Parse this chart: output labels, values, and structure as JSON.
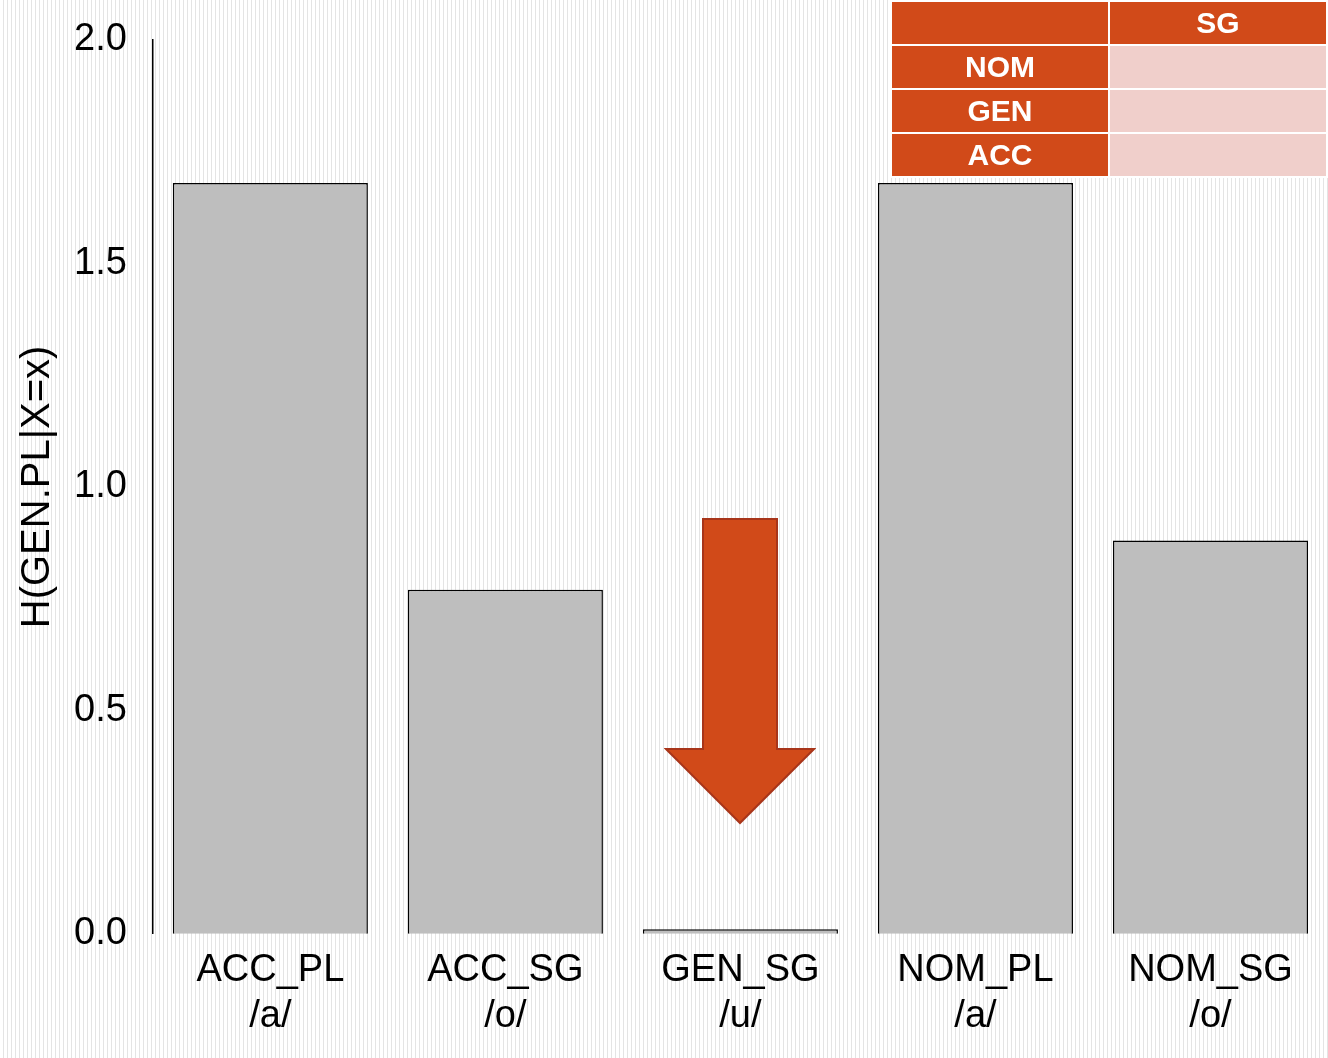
{
  "chart_data": {
    "type": "bar",
    "ylabel": "H(GEN.PL|X=x)",
    "categories": [
      "ACC_PL\n/a/",
      "ACC_SG\n/o/",
      "GEN_SG\n/u/",
      "NOM_PL\n/a/",
      "NOM_SG\n/o/"
    ],
    "values": [
      1.68,
      0.77,
      0.01,
      1.68,
      0.88
    ],
    "color": "#bebebe",
    "ylim": [
      0,
      2
    ],
    "yticks": [
      {
        "value": 0,
        "label": "0.0"
      },
      {
        "value": 0.5,
        "label": "0.5"
      },
      {
        "value": 1,
        "label": "1.0"
      },
      {
        "value": 1.5,
        "label": "1.5"
      },
      {
        "value": 2,
        "label": "2.0"
      }
    ],
    "grid": false,
    "legend": false,
    "annotations": [
      "SG",
      "NOM",
      "GEN",
      "ACC"
    ]
  }
}
